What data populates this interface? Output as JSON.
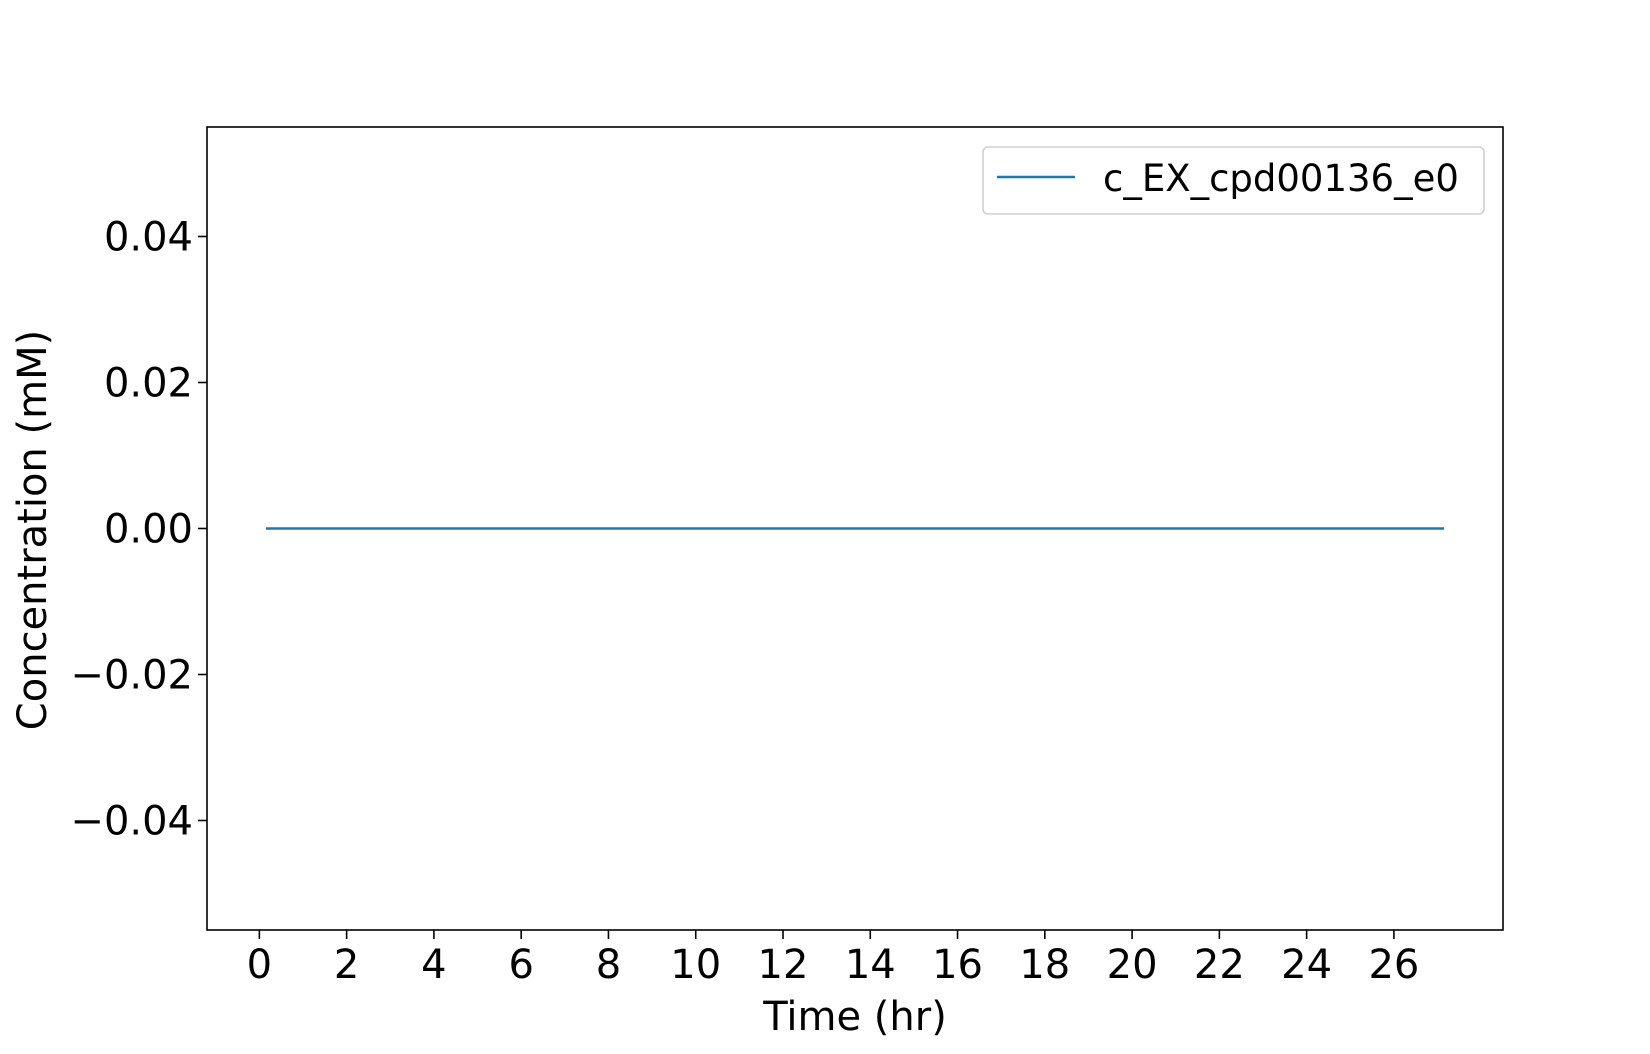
{
  "chart_data": {
    "type": "line",
    "title": "",
    "xlabel": "Time (hr)",
    "ylabel": "Concentration (mM)",
    "xlim": [
      -1.2,
      28.5
    ],
    "ylim": [
      -0.055,
      0.055
    ],
    "x_ticks": [
      0,
      2,
      4,
      6,
      8,
      10,
      12,
      14,
      16,
      18,
      20,
      22,
      24,
      26
    ],
    "x_tick_labels": [
      "0",
      "2",
      "4",
      "6",
      "8",
      "10",
      "12",
      "14",
      "16",
      "18",
      "20",
      "22",
      "24",
      "26"
    ],
    "y_ticks": [
      0.04,
      0.02,
      0.0,
      -0.02,
      -0.04
    ],
    "y_tick_labels": [
      "0.04",
      "0.02",
      "0.00",
      "−0.02",
      "−0.04"
    ],
    "grid": false,
    "legend_position": "top-right",
    "series": [
      {
        "name": "c_EX_cpd00136_e0",
        "color": "#1f77b4",
        "x": [
          0.15,
          27.15
        ],
        "y": [
          0.0,
          0.0
        ]
      }
    ]
  }
}
